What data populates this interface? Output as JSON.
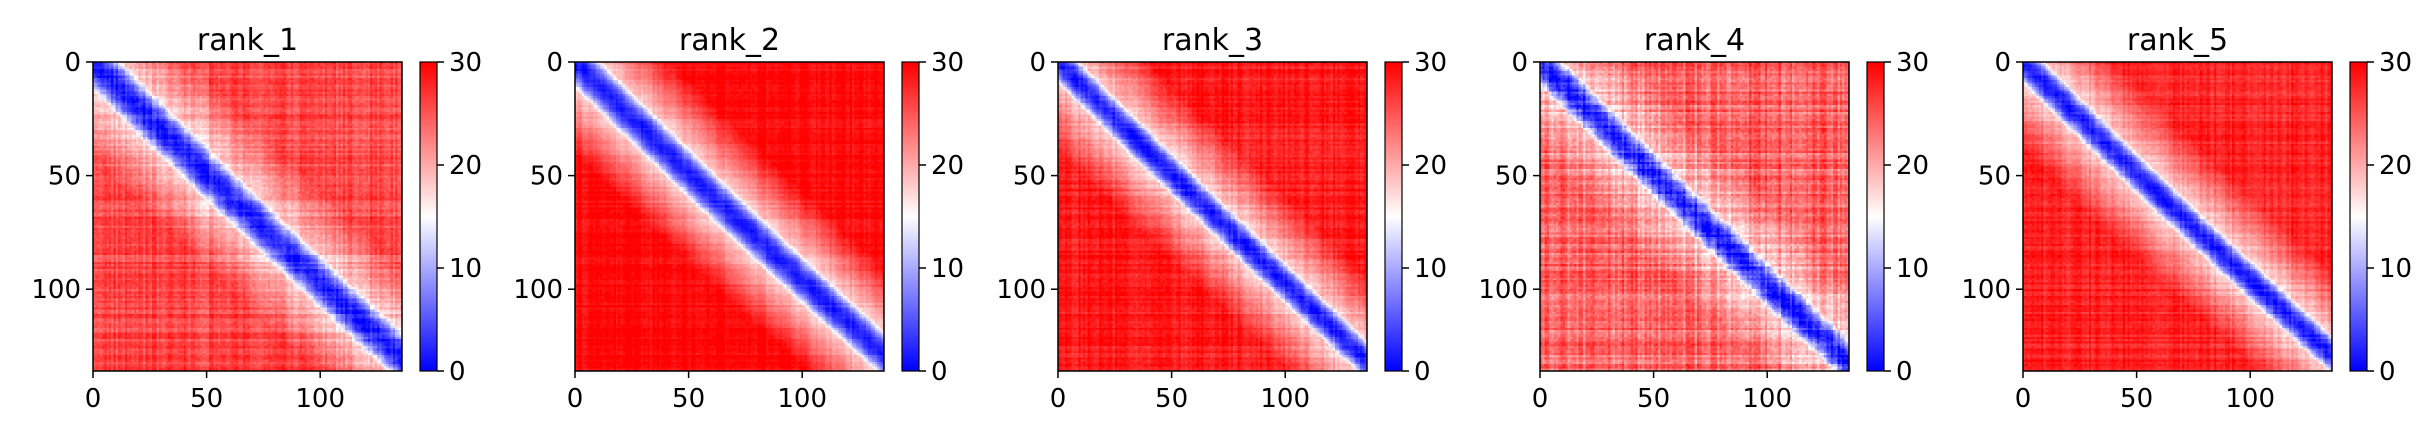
{
  "chart_data": [
    {
      "type": "heatmap",
      "title": "rank_1",
      "x_range": [
        0,
        136
      ],
      "y_range": [
        0,
        136
      ],
      "y_inverted": true,
      "x_ticks": [
        "0",
        "50",
        "100"
      ],
      "y_ticks": [
        "0",
        "50",
        "100"
      ],
      "colorbar": {
        "range": [
          0,
          30
        ],
        "ticks": [
          "0",
          "10",
          "20",
          "30"
        ],
        "colormap": "bwr"
      },
      "pattern": {
        "band_width": 13,
        "far_level": 0.86,
        "noise": 0.1,
        "diag_offset_end": 6
      }
    },
    {
      "type": "heatmap",
      "title": "rank_2",
      "x_range": [
        0,
        136
      ],
      "y_range": [
        0,
        136
      ],
      "y_inverted": true,
      "x_ticks": [
        "0",
        "50",
        "100"
      ],
      "y_ticks": [
        "0",
        "50",
        "100"
      ],
      "colorbar": {
        "range": [
          0,
          30
        ],
        "ticks": [
          "0",
          "10",
          "20",
          "30"
        ],
        "colormap": "bwr"
      },
      "pattern": {
        "band_width": 12,
        "far_level": 0.98,
        "noise": 0.06,
        "diag_offset_end": 8
      }
    },
    {
      "type": "heatmap",
      "title": "rank_3",
      "x_range": [
        0,
        136
      ],
      "y_range": [
        0,
        136
      ],
      "y_inverted": true,
      "x_ticks": [
        "0",
        "50",
        "100"
      ],
      "y_ticks": [
        "0",
        "50",
        "100"
      ],
      "colorbar": {
        "range": [
          0,
          30
        ],
        "ticks": [
          "0",
          "10",
          "20",
          "30"
        ],
        "colormap": "bwr"
      },
      "pattern": {
        "band_width": 10,
        "far_level": 0.95,
        "noise": 0.08,
        "diag_offset_end": 5
      }
    },
    {
      "type": "heatmap",
      "title": "rank_4",
      "x_range": [
        0,
        136
      ],
      "y_range": [
        0,
        136
      ],
      "y_inverted": true,
      "x_ticks": [
        "0",
        "50",
        "100"
      ],
      "y_ticks": [
        "0",
        "50",
        "100"
      ],
      "colorbar": {
        "range": [
          0,
          30
        ],
        "ticks": [
          "0",
          "10",
          "20",
          "30"
        ],
        "colormap": "bwr"
      },
      "pattern": {
        "band_width": 11,
        "far_level": 0.8,
        "noise": 0.14,
        "diag_offset_end": 4
      }
    },
    {
      "type": "heatmap",
      "title": "rank_5",
      "x_range": [
        0,
        136
      ],
      "y_range": [
        0,
        136
      ],
      "y_inverted": true,
      "x_ticks": [
        "0",
        "50",
        "100"
      ],
      "y_ticks": [
        "0",
        "50",
        "100"
      ],
      "colorbar": {
        "range": [
          0,
          30
        ],
        "ticks": [
          "0",
          "10",
          "20",
          "30"
        ],
        "colormap": "bwr"
      },
      "pattern": {
        "band_width": 10,
        "far_level": 0.93,
        "noise": 0.08,
        "diag_offset_end": 8
      }
    }
  ]
}
